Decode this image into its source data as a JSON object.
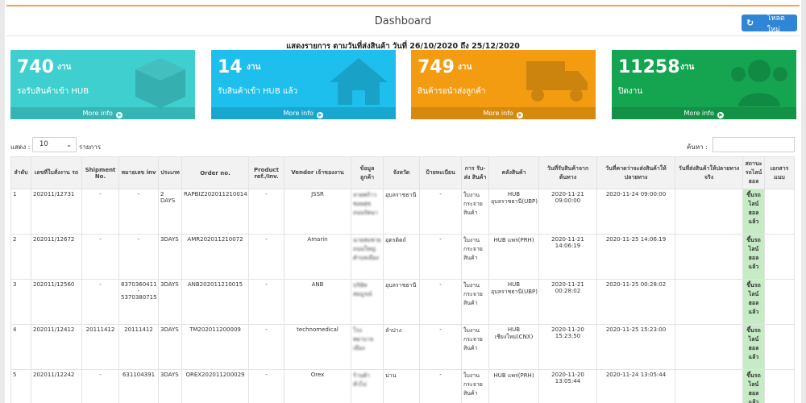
{
  "header": {
    "title": "Dashboard",
    "reload_label": "โหลดใหม่",
    "subtitle": "แสดงรายการ ตามวันที่ส่งสินค้า วันที่ 26/10/2020 ถึง 25/12/2020"
  },
  "cards": [
    {
      "count": "740",
      "unit": "งาน",
      "label": "รอรับสินค้าเข้า HUB",
      "more": "More info",
      "icon": "cube-icon",
      "color": "#3fcfcf"
    },
    {
      "count": "14",
      "unit": "งาน",
      "label": "รับสินค้าเข้า HUB แล้ว",
      "more": "More info",
      "icon": "home-icon",
      "color": "#1ebfec"
    },
    {
      "count": "749",
      "unit": "งาน",
      "label": "สินค้ารอนำส่งลูกค้า",
      "more": "More info",
      "icon": "truck-icon",
      "color": "#f39c12"
    },
    {
      "count": "11258",
      "unit": "งาน",
      "label": "ปิดงาน",
      "more": "More info",
      "icon": "users-icon",
      "color": "#15a551"
    }
  ],
  "controls": {
    "show_label": "แสดง :",
    "page_size": "10",
    "items_label": "รายการ",
    "search_label": "ค้นหา :",
    "search_value": ""
  },
  "table": {
    "columns": [
      "ลำดับ",
      "เลขที่ใบสั่งงาน รถ",
      "Shipment No.",
      "หมายเลข inv",
      "ประเภท",
      "Order no.",
      "Product ref./Inv.",
      "Vendor เจ้าของงาน",
      "ข้อมูลลูกค้า",
      "จังหวัด",
      "ป้ายทะเบียน",
      "การ รับ-ส่ง สินค้า",
      "คลังสินค้า",
      "วันที่รับสินค้าจากต้นทาง",
      "วันที่คาดว่าจะส่งสินค้าให้ปลายทาง",
      "วันที่ส่งสินค้าให้ปลายทางจริง",
      "สถานะรถไลน์ฮอล",
      "เอกสารแนบ"
    ],
    "rows": [
      {
        "no": "1",
        "job": "202011/12731",
        "shipment": "-",
        "inv": "-",
        "type": "2 DAYS",
        "order": "RAPBIZ202011210014",
        "product": "-",
        "vendor": "JSSR",
        "customer": "ลาดพร้าว ซอยสุข ถนนรัตนา",
        "province": "อุบลราชธานี",
        "plate": "-",
        "transport": "ใบงาน กระจาย สินค้า",
        "warehouse": "HUB อุบลราชธานี(UBP)",
        "received": "2020-11-21 09:00:00",
        "expected": "2020-11-24 09:00:00",
        "actual": "",
        "status": "ขึ้นรถไลน์ฮอลแล้ว",
        "doc": ""
      },
      {
        "no": "2",
        "job": "202011/12672",
        "shipment": "-",
        "inv": "-",
        "type": "3DAYS",
        "order": "AMR202011210072",
        "product": "-",
        "vendor": "Amarin",
        "customer": "นายสมชาย ถนนใหญ่ ตำบลเมือง",
        "province": "อุตรดิตถ์",
        "plate": "-",
        "transport": "ใบงาน กระจาย สินค้า",
        "warehouse": "HUB แพร่(PRH)",
        "received": "2020-11-21 14:06:19",
        "expected": "2020-11-25 14:06:19",
        "actual": "",
        "status": "ขึ้นรถไลน์ฮอลแล้ว",
        "doc": ""
      },
      {
        "no": "3",
        "job": "202011/12560",
        "shipment": "-",
        "inv": "8370360411 - 5370380715",
        "type": "3DAYS",
        "order": "ANB202011210015",
        "product": "-",
        "vendor": "ANB",
        "customer": "บริษัทสมบูรณ์",
        "province": "อุบลราชธานี",
        "plate": "-",
        "transport": "ใบงาน กระจาย สินค้า",
        "warehouse": "HUB อุบลราชธานี(UBP)",
        "received": "2020-11-21 00:28:02",
        "expected": "2020-11-25 00:28:02",
        "actual": "",
        "status": "ขึ้นรถไลน์ฮอลแล้ว",
        "doc": ""
      },
      {
        "no": "4",
        "job": "202011/12412",
        "shipment": "20111412",
        "inv": "20111412",
        "type": "3DAYS",
        "order": "TM202011200009",
        "product": "-",
        "vendor": "technomedical",
        "customer": "โรงพยาบาลเมือง",
        "province": "ลำปาง",
        "plate": "-",
        "transport": "ใบงาน กระจาย สินค้า",
        "warehouse": "HUB เชียงใหม่(CNX)",
        "received": "2020-11-20 15:23:50",
        "expected": "2020-11-25 15:23:00",
        "actual": "",
        "status": "ขึ้นรถไลน์ฮอลแล้ว",
        "doc": ""
      },
      {
        "no": "5",
        "job": "202011/12242",
        "shipment": "-",
        "inv": "631104391",
        "type": "3DAYS",
        "order": "OREX202011200029",
        "product": "-",
        "vendor": "Orex",
        "customer": "ร้านค้าทั่วไป",
        "province": "น่าน",
        "plate": "-",
        "transport": "ใบงาน กระจาย สินค้า",
        "warehouse": "HUB แพร่(PRH)",
        "received": "2020-11-20 13:05:44",
        "expected": "2020-11-24 13:05:44",
        "actual": "",
        "status": "ขึ้นรถไลน์ฮอลแล้ว",
        "doc": ""
      }
    ]
  }
}
